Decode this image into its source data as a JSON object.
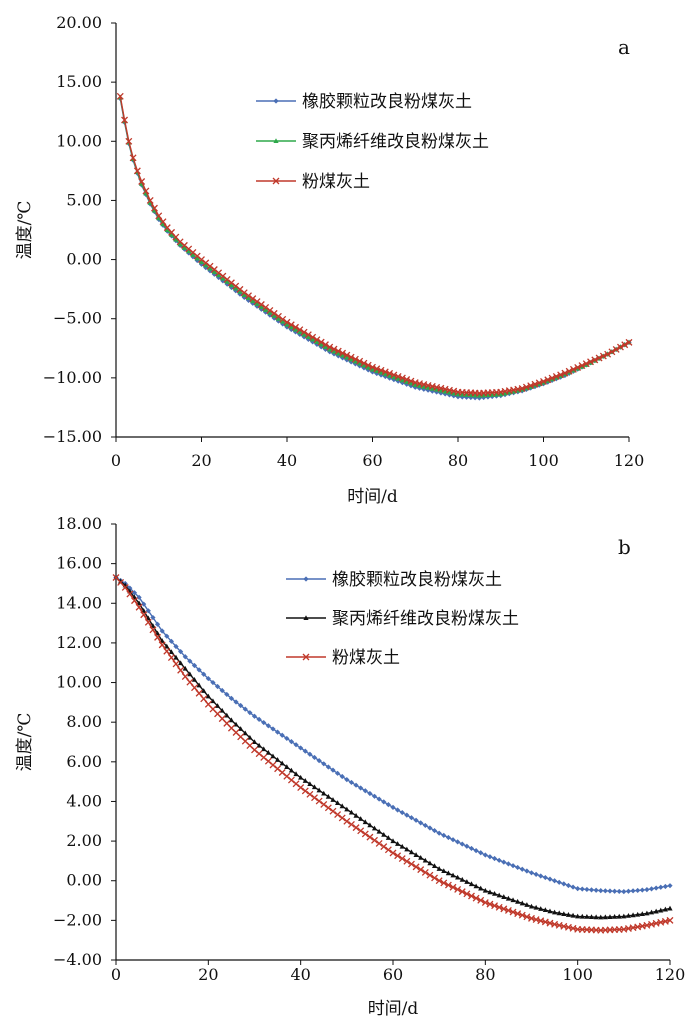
{
  "figure": {
    "panels": [
      "a",
      "b"
    ]
  },
  "chart_data": [
    {
      "type": "line",
      "panel": "a",
      "xlabel": "时间/d",
      "ylabel": "温度/℃",
      "xlim": [
        0,
        120
      ],
      "ylim": [
        -15,
        20
      ],
      "xticks": [
        "0",
        "20",
        "40",
        "60",
        "80",
        "100",
        "120"
      ],
      "yticks": [
        "20.00",
        "15.00",
        "10.00",
        "5.00",
        "0.00",
        "−5.00",
        "−10.00",
        "−15.00"
      ],
      "legend_position": "top-center",
      "series": [
        {
          "name": "橡胶颗粒改良粉煤灰土",
          "color": "#4a6fb5",
          "marker": "diamond",
          "keypoints": [
            [
              1,
              13.6
            ],
            [
              2,
              11.6
            ],
            [
              3,
              9.8
            ],
            [
              4,
              8.4
            ],
            [
              5,
              7.3
            ],
            [
              6,
              6.3
            ],
            [
              8,
              4.7
            ],
            [
              10,
              3.4
            ],
            [
              12,
              2.4
            ],
            [
              15,
              1.2
            ],
            [
              20,
              -0.4
            ],
            [
              25,
              -1.8
            ],
            [
              30,
              -3.2
            ],
            [
              40,
              -5.7
            ],
            [
              50,
              -7.8
            ],
            [
              60,
              -9.5
            ],
            [
              70,
              -10.8
            ],
            [
              80,
              -11.6
            ],
            [
              85,
              -11.7
            ],
            [
              90,
              -11.5
            ],
            [
              95,
              -11.1
            ],
            [
              100,
              -10.5
            ],
            [
              105,
              -9.8
            ],
            [
              110,
              -8.9
            ],
            [
              115,
              -8.0
            ],
            [
              120,
              -7.0
            ]
          ]
        },
        {
          "name": "聚丙烯纤维改良粉煤灰土",
          "color": "#2ea84a",
          "marker": "triangle",
          "keypoints": [
            [
              1,
              13.7
            ],
            [
              2,
              11.7
            ],
            [
              3,
              9.9
            ],
            [
              4,
              8.5
            ],
            [
              5,
              7.4
            ],
            [
              6,
              6.4
            ],
            [
              8,
              4.8
            ],
            [
              10,
              3.5
            ],
            [
              12,
              2.5
            ],
            [
              15,
              1.3
            ],
            [
              20,
              -0.2
            ],
            [
              25,
              -1.6
            ],
            [
              30,
              -3.0
            ],
            [
              40,
              -5.5
            ],
            [
              50,
              -7.6
            ],
            [
              60,
              -9.3
            ],
            [
              70,
              -10.6
            ],
            [
              80,
              -11.4
            ],
            [
              85,
              -11.5
            ],
            [
              90,
              -11.4
            ],
            [
              95,
              -11.0
            ],
            [
              100,
              -10.4
            ],
            [
              105,
              -9.7
            ],
            [
              110,
              -8.9
            ],
            [
              115,
              -8.0
            ],
            [
              120,
              -7.0
            ]
          ]
        },
        {
          "name": "粉煤灰土",
          "color": "#c0392b",
          "marker": "x",
          "keypoints": [
            [
              1,
              13.8
            ],
            [
              2,
              11.8
            ],
            [
              3,
              10.0
            ],
            [
              4,
              8.6
            ],
            [
              5,
              7.5
            ],
            [
              6,
              6.6
            ],
            [
              8,
              5.0
            ],
            [
              10,
              3.7
            ],
            [
              12,
              2.7
            ],
            [
              15,
              1.5
            ],
            [
              20,
              0.0
            ],
            [
              25,
              -1.4
            ],
            [
              30,
              -2.8
            ],
            [
              40,
              -5.3
            ],
            [
              50,
              -7.4
            ],
            [
              60,
              -9.1
            ],
            [
              70,
              -10.4
            ],
            [
              80,
              -11.2
            ],
            [
              85,
              -11.3
            ],
            [
              90,
              -11.2
            ],
            [
              95,
              -10.9
            ],
            [
              100,
              -10.3
            ],
            [
              105,
              -9.6
            ],
            [
              110,
              -8.8
            ],
            [
              115,
              -8.0
            ],
            [
              120,
              -7.0
            ]
          ]
        }
      ]
    },
    {
      "type": "line",
      "panel": "b",
      "xlabel": "时间/d",
      "ylabel": "温度/℃",
      "xlim": [
        0,
        120
      ],
      "ylim": [
        -4,
        18
      ],
      "xticks": [
        "0",
        "20",
        "40",
        "60",
        "80",
        "100",
        "120"
      ],
      "yticks": [
        "18.00",
        "16.00",
        "14.00",
        "12.00",
        "10.00",
        "8.00",
        "6.00",
        "4.00",
        "2.00",
        "0.00",
        "−2.00",
        "−4.00"
      ],
      "legend_position": "top-right",
      "series": [
        {
          "name": "橡胶颗粒改良粉煤灰土",
          "color": "#4a6fb5",
          "marker": "diamond",
          "keypoints": [
            [
              0,
              15.3
            ],
            [
              2,
              15.0
            ],
            [
              5,
              14.3
            ],
            [
              10,
              12.6
            ],
            [
              15,
              11.3
            ],
            [
              20,
              10.2
            ],
            [
              25,
              9.2
            ],
            [
              30,
              8.3
            ],
            [
              40,
              6.7
            ],
            [
              50,
              5.1
            ],
            [
              60,
              3.7
            ],
            [
              70,
              2.4
            ],
            [
              80,
              1.3
            ],
            [
              90,
              0.4
            ],
            [
              95,
              0.0
            ],
            [
              100,
              -0.4
            ],
            [
              105,
              -0.5
            ],
            [
              110,
              -0.55
            ],
            [
              115,
              -0.45
            ],
            [
              120,
              -0.25
            ]
          ]
        },
        {
          "name": "聚丙烯纤维改良粉煤灰土",
          "color": "#111111",
          "marker": "triangle",
          "keypoints": [
            [
              0,
              15.3
            ],
            [
              2,
              14.9
            ],
            [
              5,
              14.0
            ],
            [
              10,
              12.1
            ],
            [
              15,
              10.7
            ],
            [
              20,
              9.3
            ],
            [
              25,
              8.1
            ],
            [
              30,
              7.0
            ],
            [
              40,
              5.2
            ],
            [
              50,
              3.6
            ],
            [
              60,
              2.0
            ],
            [
              70,
              0.6
            ],
            [
              80,
              -0.5
            ],
            [
              90,
              -1.3
            ],
            [
              95,
              -1.6
            ],
            [
              100,
              -1.8
            ],
            [
              105,
              -1.85
            ],
            [
              110,
              -1.8
            ],
            [
              115,
              -1.65
            ],
            [
              120,
              -1.4
            ]
          ]
        },
        {
          "name": "粉煤灰土",
          "color": "#c0392b",
          "marker": "x",
          "keypoints": [
            [
              0,
              15.3
            ],
            [
              2,
              14.8
            ],
            [
              5,
              13.8
            ],
            [
              10,
              11.9
            ],
            [
              15,
              10.3
            ],
            [
              20,
              8.9
            ],
            [
              25,
              7.7
            ],
            [
              30,
              6.6
            ],
            [
              40,
              4.7
            ],
            [
              50,
              3.0
            ],
            [
              60,
              1.4
            ],
            [
              70,
              0.0
            ],
            [
              80,
              -1.1
            ],
            [
              90,
              -1.9
            ],
            [
              95,
              -2.2
            ],
            [
              100,
              -2.45
            ],
            [
              105,
              -2.5
            ],
            [
              110,
              -2.45
            ],
            [
              115,
              -2.25
            ],
            [
              120,
              -2.0
            ]
          ]
        }
      ]
    }
  ]
}
